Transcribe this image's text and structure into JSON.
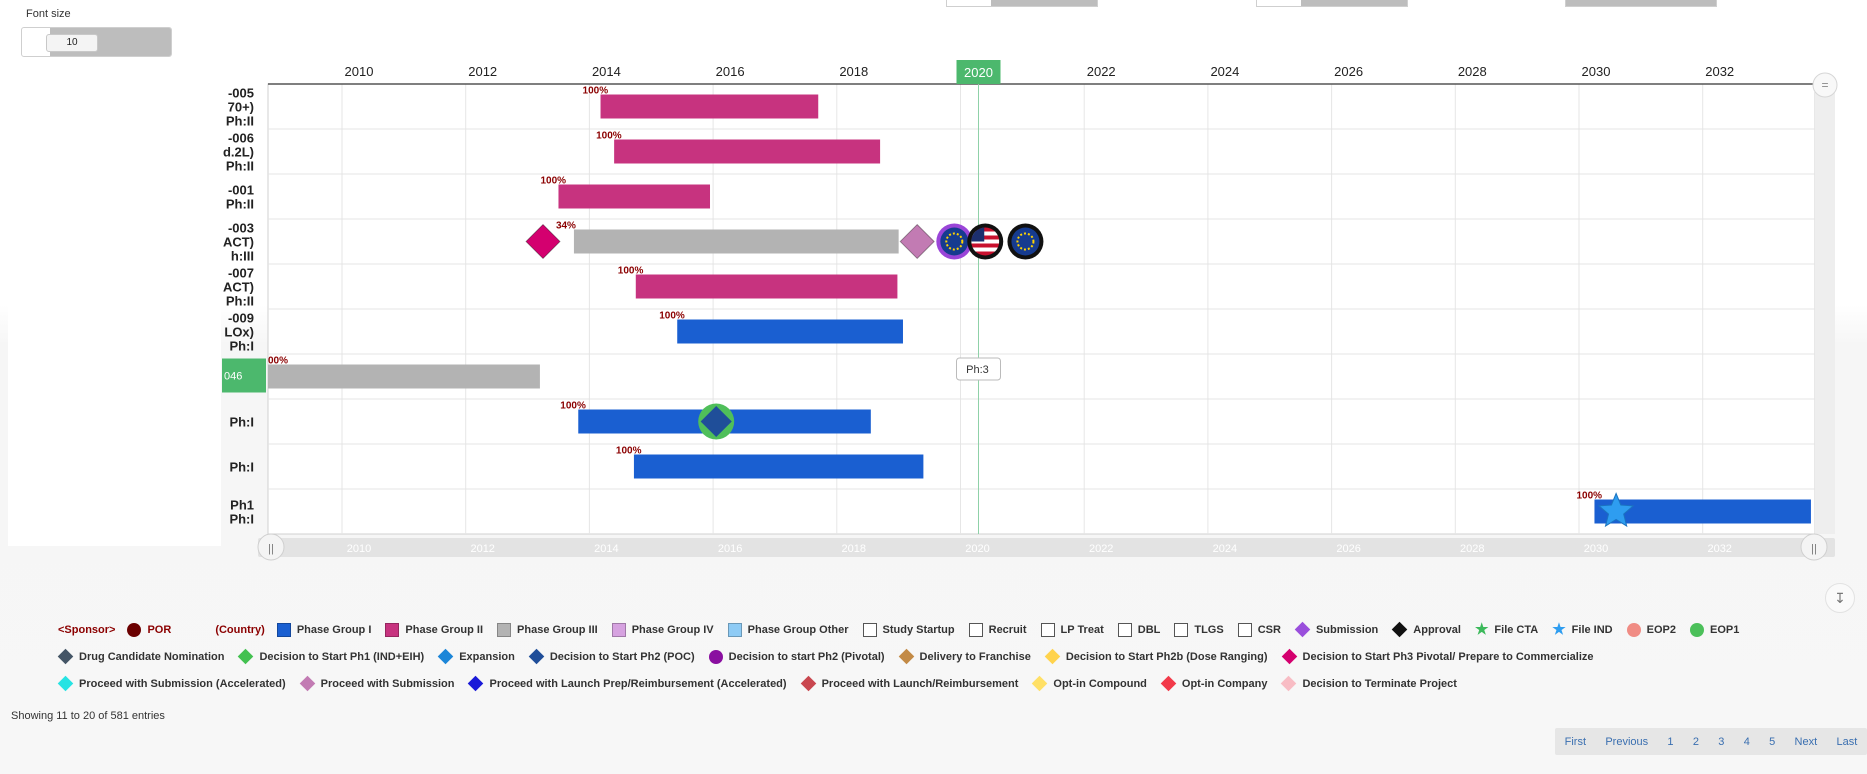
{
  "font_size": {
    "label": "Font size",
    "value": "10"
  },
  "gantt": {
    "year_ticks": [
      "2010",
      "2012",
      "2014",
      "2016",
      "2018",
      "2020",
      "2022",
      "2024",
      "2026",
      "2028",
      "2030",
      "2032"
    ],
    "current_year": "2020",
    "tooltip": "Ph:3",
    "rows": [
      {
        "label_lines": [
          "-005",
          "70+)",
          "Ph:II"
        ],
        "start": 2014.18,
        "end": 2017.7,
        "color": "#c7337f",
        "pct": "100%"
      },
      {
        "label_lines": [
          "-006",
          "d.2L)",
          "Ph:II"
        ],
        "start": 2014.4,
        "end": 2018.7,
        "color": "#c7337f",
        "pct": "100%"
      },
      {
        "label_lines": [
          "-001",
          "Ph:II"
        ],
        "start": 2013.5,
        "end": 2015.95,
        "color": "#c7337f",
        "pct": "100%"
      },
      {
        "label_lines": [
          "-003",
          "ACT)",
          "h:III"
        ],
        "start": 2013.75,
        "end": 2019.0,
        "color": "#b3b3b3",
        "pct": "34%"
      },
      {
        "label_lines": [
          "-007",
          "ACT)",
          "Ph:II"
        ],
        "start": 2014.75,
        "end": 2018.98,
        "color": "#c7337f",
        "pct": "100%"
      },
      {
        "label_lines": [
          "-009",
          "LOx)",
          "Ph:I"
        ],
        "start": 2015.42,
        "end": 2019.07,
        "color": "#1a5fd1",
        "pct": "100%"
      },
      {
        "label_lines": [],
        "start": 2008.78,
        "end": 2013.2,
        "color": "#b3b3b3",
        "pct": "00%",
        "green_tag": "046"
      },
      {
        "label_lines": [
          "Ph:I"
        ],
        "start": 2013.82,
        "end": 2018.55,
        "color": "#1a5fd1",
        "pct": "100%"
      },
      {
        "label_lines": [
          "Ph:I"
        ],
        "start": 2014.72,
        "end": 2019.4,
        "color": "#1a5fd1",
        "pct": "100%"
      },
      {
        "label_lines": [
          "Ph1",
          "Ph:I"
        ],
        "start": 2030.25,
        "end": 2033.75,
        "color": "#1a5fd1",
        "pct": "100%",
        "partial_first": ") Ph1"
      }
    ],
    "markers": [
      {
        "row": 3,
        "x": 2013.25,
        "type": "diamond",
        "color": "#d4006f",
        "name": "decision-to-start-ph3-marker"
      },
      {
        "row": 3,
        "x": 2019.3,
        "type": "diamond",
        "color": "#c27bb3",
        "name": "proceed-with-submission-marker"
      },
      {
        "row": 3,
        "x": 2019.9,
        "type": "flag-eu",
        "ring": "#9a45d8",
        "name": "eu-flag-icon"
      },
      {
        "row": 3,
        "x": 2020.4,
        "type": "flag-us",
        "ring": "#111111",
        "name": "us-flag-icon"
      },
      {
        "row": 3,
        "x": 2021.05,
        "type": "flag-eu",
        "ring": "#111111",
        "name": "eu-flag-icon-2"
      },
      {
        "row": 7,
        "x": 2016.05,
        "type": "diamond-ring",
        "color": "#1f4e99",
        "ring": "#4fbf5a",
        "name": "decision-to-start-ph2-marker"
      },
      {
        "row": 9,
        "x": 2030.6,
        "type": "star",
        "color": "#2e9df0",
        "name": "file-ind-star-icon"
      }
    ]
  },
  "legend": {
    "rows": [
      [
        {
          "label": "<Sponsor>",
          "kind": "text",
          "color": "#8b0000"
        },
        {
          "label": "POR",
          "kind": "circle",
          "color": "#6b0000",
          "text_color": "#8b0000"
        },
        {
          "label": "(Country)",
          "kind": "text",
          "color": "#8b0000"
        },
        {
          "label": "Phase Group I",
          "kind": "square",
          "color": "#1a5fd1"
        },
        {
          "label": "Phase Group II",
          "kind": "square",
          "color": "#c7337f"
        },
        {
          "label": "Phase Group III",
          "kind": "square",
          "color": "#b3b3b3"
        },
        {
          "label": "Phase Group IV",
          "kind": "square",
          "color": "#d6a2e0"
        },
        {
          "label": "Phase Group Other",
          "kind": "square",
          "color": "#8ecbf5"
        },
        {
          "label": "Study Startup",
          "kind": "box"
        },
        {
          "label": "Recruit",
          "kind": "box"
        },
        {
          "label": "LP Treat",
          "kind": "box"
        },
        {
          "label": "DBL",
          "kind": "box"
        },
        {
          "label": "TLGS",
          "kind": "box"
        },
        {
          "label": "CSR",
          "kind": "box"
        },
        {
          "label": "Submission",
          "kind": "diamond",
          "color": "#9a4fdc"
        },
        {
          "label": "Approval",
          "kind": "diamond",
          "color": "#111111"
        },
        {
          "label": "File CTA",
          "kind": "star",
          "color": "#3cb95b"
        },
        {
          "label": "File IND",
          "kind": "star",
          "color": "#2e9df0"
        },
        {
          "label": "EOP2",
          "kind": "circle",
          "color": "#f08c84"
        },
        {
          "label": "EOP1",
          "kind": "circle",
          "color": "#4cc05a"
        }
      ],
      [
        {
          "label": "Drug Candidate Nomination",
          "kind": "diamond",
          "color": "#445566"
        },
        {
          "label": "Decision to Start Ph1 (IND+EIH)",
          "kind": "diamond",
          "color": "#43c150"
        },
        {
          "label": "Expansion",
          "kind": "diamond",
          "color": "#1c86d8"
        },
        {
          "label": "Decision to Start Ph2 (POC)",
          "kind": "diamond",
          "color": "#1f4e99"
        },
        {
          "label": "Decision to start Ph2 (Pivotal)",
          "kind": "circle",
          "color": "#8a0fa0"
        },
        {
          "label": "Delivery to Franchise",
          "kind": "diamond",
          "color": "#c38a45"
        },
        {
          "label": "Decision to Start Ph2b (Dose Ranging)",
          "kind": "diamond",
          "color": "#ffd34d"
        },
        {
          "label": "Decision to Start Ph3 Pivotal/ Prepare to Commercialize",
          "kind": "diamond",
          "color": "#d4006f"
        }
      ],
      [
        {
          "label": "Proceed with Submission (Accelerated)",
          "kind": "diamond",
          "color": "#27e3e3"
        },
        {
          "label": "Proceed with Submission",
          "kind": "diamond",
          "color": "#c27bb3"
        },
        {
          "label": "Proceed with Launch Prep/Reimbursement (Accelerated)",
          "kind": "diamond",
          "color": "#1a1ad8"
        },
        {
          "label": "Proceed with Launch/Reimbursement",
          "kind": "diamond",
          "color": "#c9474f"
        },
        {
          "label": "Opt-in Compound",
          "kind": "diamond",
          "color": "#ffe066"
        },
        {
          "label": "Opt-in Company",
          "kind": "diamond",
          "color": "#f23a4a"
        },
        {
          "label": "Decision to Terminate Project",
          "kind": "diamond",
          "color": "#f8bcc4"
        }
      ]
    ]
  },
  "table_info": "Showing 11 to 20 of 581 entries",
  "pagination": [
    "First",
    "Previous",
    "1",
    "2",
    "3",
    "4",
    "5",
    "Next",
    "Last"
  ]
}
